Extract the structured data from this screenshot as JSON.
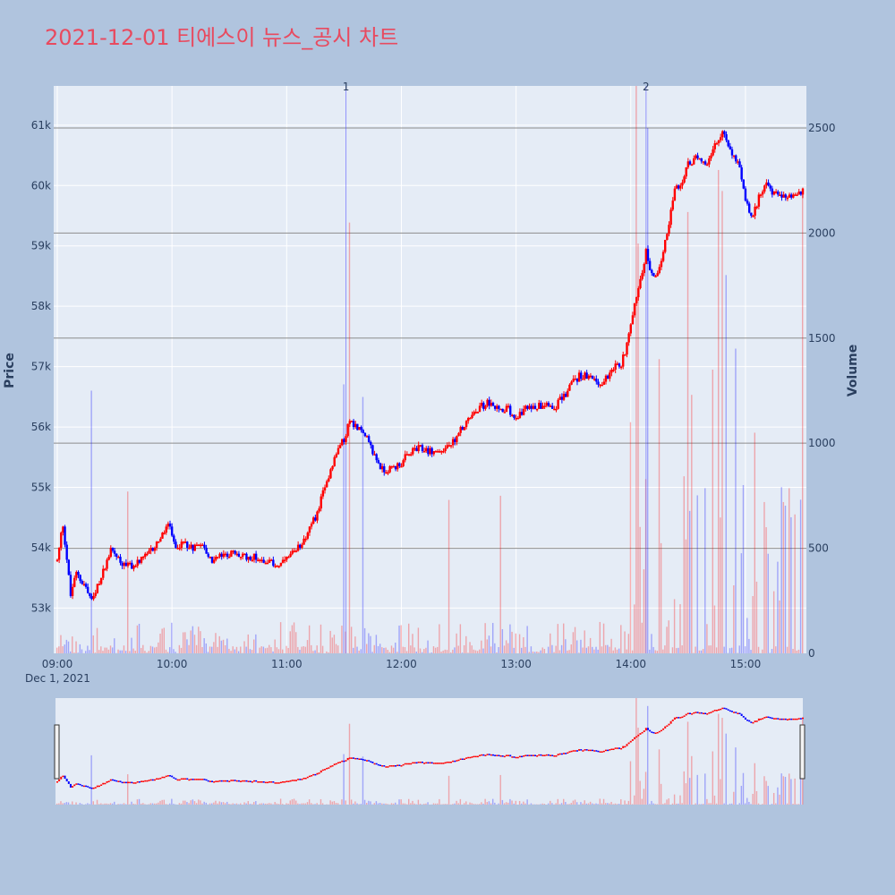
{
  "chart_data": {
    "type": "candlestick",
    "title": "2021-12-01 티에스이 뉴스_공시 차트",
    "title_color": "#e84a5f",
    "ylabel": "Price",
    "y2label": "Volume",
    "date_label": "Dec 1, 2021",
    "x_ticks": [
      "09:00",
      "10:00",
      "11:00",
      "12:00",
      "13:00",
      "14:00",
      "15:00"
    ],
    "x_range": [
      "09:00",
      "15:30"
    ],
    "price_ticks": [
      53000,
      54000,
      55000,
      56000,
      57000,
      58000,
      59000,
      60000,
      61000
    ],
    "price_tick_labels": [
      "53k",
      "54k",
      "55k",
      "56k",
      "57k",
      "58k",
      "59k",
      "60k",
      "61k"
    ],
    "price_range": [
      52250,
      61650
    ],
    "volume_ticks": [
      0,
      500,
      1000,
      1500,
      2000,
      2500
    ],
    "volume_range": [
      0,
      2700
    ],
    "up_color": "#ff0000",
    "down_color": "#0000ff",
    "news_markers": [
      {
        "label": "1",
        "time": "11:31"
      },
      {
        "label": "2",
        "time": "14:08"
      }
    ],
    "price_keyframes": [
      [
        "09:00",
        53800
      ],
      [
        "09:03",
        54400
      ],
      [
        "09:07",
        53200
      ],
      [
        "09:10",
        53600
      ],
      [
        "09:14",
        53400
      ],
      [
        "09:18",
        53100
      ],
      [
        "09:22",
        53400
      ],
      [
        "09:28",
        54000
      ],
      [
        "09:35",
        53700
      ],
      [
        "09:40",
        53700
      ],
      [
        "09:48",
        53900
      ],
      [
        "09:55",
        54200
      ],
      [
        "09:58",
        54400
      ],
      [
        "10:02",
        54000
      ],
      [
        "10:07",
        54100
      ],
      [
        "10:10",
        54000
      ],
      [
        "10:15",
        54100
      ],
      [
        "10:20",
        53800
      ],
      [
        "10:30",
        53900
      ],
      [
        "10:40",
        53850
      ],
      [
        "10:50",
        53800
      ],
      [
        "10:55",
        53700
      ],
      [
        "11:00",
        53800
      ],
      [
        "11:05",
        53950
      ],
      [
        "11:10",
        54200
      ],
      [
        "11:15",
        54500
      ],
      [
        "11:20",
        55000
      ],
      [
        "11:25",
        55500
      ],
      [
        "11:30",
        55800
      ],
      [
        "11:33",
        56100
      ],
      [
        "11:36",
        56000
      ],
      [
        "11:40",
        55900
      ],
      [
        "11:45",
        55600
      ],
      [
        "11:50",
        55300
      ],
      [
        "11:55",
        55300
      ],
      [
        "12:00",
        55400
      ],
      [
        "12:05",
        55600
      ],
      [
        "12:10",
        55650
      ],
      [
        "12:15",
        55600
      ],
      [
        "12:20",
        55600
      ],
      [
        "12:25",
        55700
      ],
      [
        "12:30",
        55900
      ],
      [
        "12:35",
        56100
      ],
      [
        "12:40",
        56300
      ],
      [
        "12:45",
        56400
      ],
      [
        "12:50",
        56300
      ],
      [
        "12:55",
        56300
      ],
      [
        "13:00",
        56200
      ],
      [
        "13:05",
        56300
      ],
      [
        "13:10",
        56350
      ],
      [
        "13:15",
        56400
      ],
      [
        "13:20",
        56350
      ],
      [
        "13:25",
        56500
      ],
      [
        "13:30",
        56800
      ],
      [
        "13:35",
        56850
      ],
      [
        "13:40",
        56800
      ],
      [
        "13:45",
        56700
      ],
      [
        "13:50",
        57000
      ],
      [
        "13:55",
        57000
      ],
      [
        "14:00",
        57700
      ],
      [
        "14:03",
        58200
      ],
      [
        "14:06",
        58600
      ],
      [
        "14:08",
        58900
      ],
      [
        "14:10",
        58600
      ],
      [
        "14:13",
        58500
      ],
      [
        "14:16",
        58800
      ],
      [
        "14:20",
        59400
      ],
      [
        "14:23",
        59900
      ],
      [
        "14:26",
        60000
      ],
      [
        "14:30",
        60350
      ],
      [
        "14:35",
        60500
      ],
      [
        "14:40",
        60400
      ],
      [
        "14:45",
        60700
      ],
      [
        "14:48",
        60900
      ],
      [
        "14:52",
        60600
      ],
      [
        "14:56",
        60400
      ],
      [
        "15:00",
        59800
      ],
      [
        "15:03",
        59500
      ],
      [
        "15:06",
        59700
      ],
      [
        "15:10",
        60000
      ],
      [
        "15:15",
        59900
      ],
      [
        "15:19",
        59800
      ],
      [
        "15:30",
        59900
      ]
    ],
    "volume_spikes": [
      [
        "09:18",
        1250
      ],
      [
        "09:37",
        770
      ],
      [
        "11:30",
        1280
      ],
      [
        "11:33",
        2050
      ],
      [
        "11:40",
        1220
      ],
      [
        "12:25",
        730
      ],
      [
        "12:52",
        750
      ],
      [
        "14:00",
        1100
      ],
      [
        "14:03",
        2700
      ],
      [
        "14:04",
        1950
      ],
      [
        "14:09",
        2500
      ],
      [
        "14:15",
        1400
      ],
      [
        "14:30",
        2100
      ],
      [
        "14:32",
        1230
      ],
      [
        "14:43",
        1350
      ],
      [
        "14:46",
        2300
      ],
      [
        "14:48",
        2200
      ],
      [
        "14:50",
        1800
      ],
      [
        "14:55",
        1450
      ],
      [
        "15:05",
        1050
      ],
      [
        "15:10",
        720
      ],
      [
        "15:20",
        720
      ],
      [
        "15:30",
        2200
      ]
    ]
  }
}
